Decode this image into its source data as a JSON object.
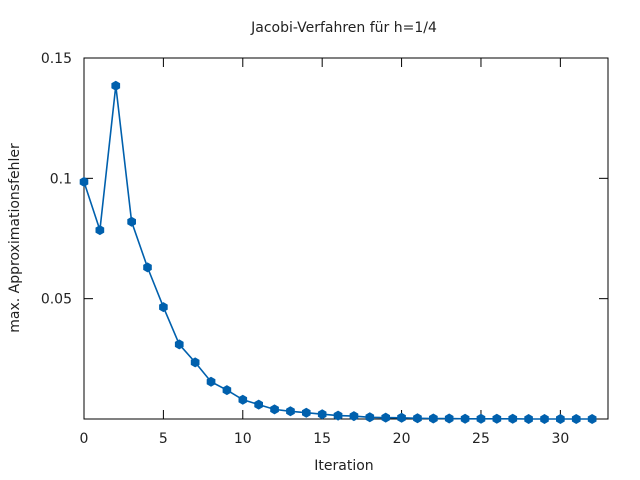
{
  "chart_data": {
    "type": "line",
    "title": "Jacobi-Verfahren für h=1/4",
    "xlabel": "Iteration",
    "ylabel": "max. Approximationsfehler",
    "xlim": [
      0,
      33
    ],
    "ylim": [
      0,
      0.15
    ],
    "x_ticks": [
      0,
      5,
      10,
      15,
      20,
      25,
      30
    ],
    "y_ticks": [
      0.05,
      0.1,
      0.15
    ],
    "y_tick_labels": [
      "0.05",
      "0.1",
      "0.15"
    ],
    "grid": false,
    "legend": "none",
    "colors": {
      "series": "#0060ad",
      "axes": "#000000",
      "text": "#222222"
    },
    "series": [
      {
        "x": [
          0,
          1,
          2,
          3,
          4,
          5,
          6,
          7,
          8,
          9,
          10,
          11,
          12,
          13,
          14,
          15,
          16,
          17,
          18,
          19,
          20,
          21,
          22,
          23,
          24,
          25,
          26,
          27,
          28,
          29,
          30,
          31,
          32
        ],
        "values": [
          0.0985,
          0.0785,
          0.1385,
          0.082,
          0.063,
          0.0465,
          0.031,
          0.0235,
          0.0155,
          0.012,
          0.008,
          0.006,
          0.004,
          0.0032,
          0.0026,
          0.002,
          0.0014,
          0.0012,
          0.0007,
          0.0006,
          0.0005,
          0.0003,
          0.0002,
          0.0002,
          0.0001,
          0.0001,
          0.0001,
          0.0001,
          0.0,
          0.0,
          0.0,
          0.0,
          0.0
        ]
      }
    ]
  }
}
